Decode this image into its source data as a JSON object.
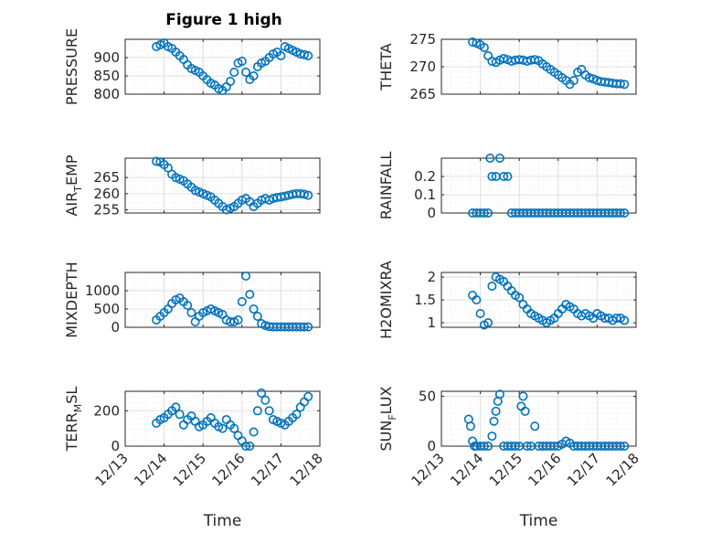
{
  "figure": {
    "title": "Figure 1 high"
  },
  "chart_data": [
    {
      "type": "scatter",
      "ylabel": "PRESSURE",
      "ylim": [
        800,
        950
      ],
      "yticks": [
        800,
        850,
        900
      ],
      "xlim": [
        0,
        5
      ],
      "x": [
        0.8,
        0.9,
        1.0,
        1.1,
        1.2,
        1.3,
        1.4,
        1.5,
        1.6,
        1.7,
        1.8,
        1.9,
        2.0,
        2.1,
        2.2,
        2.3,
        2.4,
        2.5,
        2.6,
        2.7,
        2.8,
        2.9,
        3.0,
        3.1,
        3.2,
        3.3,
        3.4,
        3.5,
        3.6,
        3.7,
        3.8,
        3.9,
        4.0,
        4.1,
        4.2,
        4.3,
        4.4,
        4.5,
        4.6,
        4.7
      ],
      "y": [
        930,
        935,
        940,
        930,
        925,
        915,
        905,
        895,
        880,
        870,
        865,
        860,
        850,
        840,
        830,
        825,
        815,
        810,
        820,
        835,
        860,
        885,
        890,
        860,
        840,
        850,
        875,
        885,
        890,
        900,
        910,
        915,
        905,
        930,
        925,
        920,
        915,
        910,
        908,
        905
      ]
    },
    {
      "type": "scatter",
      "ylabel": "THETA",
      "ylim": [
        265,
        275
      ],
      "yticks": [
        265,
        270,
        275
      ],
      "xlim": [
        0,
        5
      ],
      "x": [
        0.8,
        0.9,
        1.0,
        1.1,
        1.2,
        1.3,
        1.4,
        1.5,
        1.6,
        1.7,
        1.8,
        1.9,
        2.0,
        2.1,
        2.2,
        2.3,
        2.4,
        2.5,
        2.6,
        2.7,
        2.8,
        2.9,
        3.0,
        3.1,
        3.2,
        3.3,
        3.4,
        3.5,
        3.6,
        3.7,
        3.8,
        3.9,
        4.0,
        4.1,
        4.2,
        4.3,
        4.4,
        4.5,
        4.6,
        4.7
      ],
      "y": [
        274.5,
        274.3,
        274.0,
        273.5,
        272.0,
        271.0,
        270.8,
        271.2,
        271.5,
        271.3,
        271.0,
        271.2,
        271.3,
        271.2,
        271.0,
        271.2,
        271.3,
        271.1,
        270.5,
        270.0,
        269.5,
        269.0,
        268.5,
        268.0,
        267.5,
        266.8,
        267.5,
        269.0,
        269.5,
        268.5,
        268.0,
        267.8,
        267.5,
        267.3,
        267.2,
        267.1,
        267.0,
        266.9,
        266.9,
        266.8
      ]
    },
    {
      "type": "scatter",
      "ylabel": "AIR_T_EMP",
      "ylim": [
        254,
        271
      ],
      "yticks": [
        255,
        260,
        265
      ],
      "xlim": [
        0,
        5
      ],
      "x": [
        0.8,
        0.9,
        1.0,
        1.1,
        1.2,
        1.3,
        1.4,
        1.5,
        1.6,
        1.7,
        1.8,
        1.9,
        2.0,
        2.1,
        2.2,
        2.3,
        2.4,
        2.5,
        2.6,
        2.7,
        2.8,
        2.9,
        3.0,
        3.1,
        3.2,
        3.3,
        3.4,
        3.5,
        3.6,
        3.7,
        3.8,
        3.9,
        4.0,
        4.1,
        4.2,
        4.3,
        4.4,
        4.5,
        4.6,
        4.7
      ],
      "y": [
        270,
        269.8,
        269.0,
        268.0,
        266.0,
        265.0,
        264.5,
        264.0,
        263.0,
        262.0,
        261.0,
        260.5,
        260.0,
        259.5,
        259.0,
        258.0,
        257.0,
        256.0,
        255.0,
        255.5,
        256.0,
        257.0,
        258.0,
        258.5,
        257.5,
        256.0,
        257.0,
        258.0,
        258.5,
        258.0,
        258.5,
        258.8,
        259.0,
        259.2,
        259.5,
        259.8,
        260.0,
        260.0,
        259.8,
        259.5
      ]
    },
    {
      "type": "scatter",
      "ylabel": "RAINFALL",
      "ylim": [
        0,
        0.3
      ],
      "yticks": [
        0,
        0.1,
        0.2
      ],
      "xlim": [
        0,
        5
      ],
      "x": [
        0.8,
        0.9,
        1.0,
        1.1,
        1.2,
        1.25,
        1.3,
        1.4,
        1.5,
        1.6,
        1.7,
        1.8,
        1.9,
        2.0,
        2.1,
        2.2,
        2.3,
        2.4,
        2.5,
        2.6,
        2.7,
        2.8,
        2.9,
        3.0,
        3.1,
        3.2,
        3.3,
        3.4,
        3.5,
        3.6,
        3.7,
        3.8,
        3.9,
        4.0,
        4.1,
        4.2,
        4.3,
        4.4,
        4.5,
        4.6,
        4.7
      ],
      "y": [
        0,
        0,
        0,
        0,
        0,
        0.3,
        0.2,
        0.2,
        0.3,
        0.2,
        0.2,
        0,
        0,
        0,
        0,
        0,
        0,
        0,
        0,
        0,
        0,
        0,
        0,
        0,
        0,
        0,
        0,
        0,
        0,
        0,
        0,
        0,
        0,
        0,
        0,
        0,
        0,
        0,
        0,
        0,
        0
      ]
    },
    {
      "type": "scatter",
      "ylabel": "MIXDEPTH",
      "ylim": [
        0,
        1500
      ],
      "yticks": [
        0,
        500,
        1000
      ],
      "xlim": [
        0,
        5
      ],
      "x": [
        0.8,
        0.9,
        1.0,
        1.1,
        1.2,
        1.3,
        1.4,
        1.5,
        1.6,
        1.7,
        1.8,
        1.9,
        2.0,
        2.1,
        2.2,
        2.3,
        2.4,
        2.5,
        2.6,
        2.7,
        2.8,
        2.9,
        3.0,
        3.1,
        3.2,
        3.3,
        3.4,
        3.5,
        3.6,
        3.7,
        3.8,
        3.9,
        4.0,
        4.1,
        4.2,
        4.3,
        4.4,
        4.5,
        4.6,
        4.7
      ],
      "y": [
        200,
        300,
        400,
        500,
        650,
        750,
        800,
        700,
        600,
        400,
        150,
        300,
        400,
        450,
        500,
        450,
        400,
        350,
        200,
        150,
        150,
        200,
        700,
        1400,
        900,
        500,
        300,
        100,
        50,
        20,
        10,
        10,
        10,
        10,
        10,
        10,
        10,
        10,
        10,
        10
      ]
    },
    {
      "type": "scatter",
      "ylabel": "H2OMIXRA",
      "ylim": [
        0.9,
        2.1
      ],
      "yticks": [
        1,
        1.5,
        2
      ],
      "xlim": [
        0,
        5
      ],
      "x": [
        0.8,
        0.9,
        1.0,
        1.1,
        1.2,
        1.3,
        1.4,
        1.5,
        1.6,
        1.7,
        1.8,
        1.9,
        2.0,
        2.1,
        2.2,
        2.3,
        2.4,
        2.5,
        2.6,
        2.7,
        2.8,
        2.9,
        3.0,
        3.1,
        3.2,
        3.3,
        3.4,
        3.5,
        3.6,
        3.7,
        3.8,
        3.9,
        4.0,
        4.1,
        4.2,
        4.3,
        4.4,
        4.5,
        4.6,
        4.7
      ],
      "y": [
        1.6,
        1.5,
        1.2,
        0.95,
        1.0,
        1.8,
        2.0,
        1.95,
        1.9,
        1.8,
        1.7,
        1.6,
        1.55,
        1.4,
        1.3,
        1.2,
        1.15,
        1.1,
        1.05,
        1.0,
        1.05,
        1.1,
        1.2,
        1.3,
        1.4,
        1.35,
        1.3,
        1.2,
        1.15,
        1.2,
        1.15,
        1.1,
        1.2,
        1.15,
        1.1,
        1.1,
        1.05,
        1.1,
        1.1,
        1.05
      ]
    },
    {
      "type": "scatter",
      "ylabel": "TERR_M_SL",
      "ylim": [
        0,
        310
      ],
      "yticks": [
        0,
        200
      ],
      "xlim": [
        0,
        5
      ],
      "x": [
        0.8,
        0.9,
        1.0,
        1.1,
        1.2,
        1.3,
        1.4,
        1.5,
        1.6,
        1.7,
        1.8,
        1.9,
        2.0,
        2.1,
        2.2,
        2.3,
        2.4,
        2.5,
        2.6,
        2.7,
        2.8,
        2.9,
        3.0,
        3.1,
        3.2,
        3.3,
        3.4,
        3.5,
        3.6,
        3.7,
        3.8,
        3.9,
        4.0,
        4.1,
        4.2,
        4.3,
        4.4,
        4.5,
        4.6,
        4.7
      ],
      "y": [
        130,
        150,
        160,
        180,
        200,
        220,
        180,
        120,
        150,
        170,
        140,
        110,
        120,
        140,
        160,
        130,
        110,
        100,
        150,
        120,
        100,
        60,
        30,
        0,
        0,
        80,
        200,
        300,
        260,
        200,
        150,
        140,
        130,
        120,
        140,
        160,
        180,
        220,
        250,
        280
      ]
    },
    {
      "type": "scatter",
      "ylabel": "SUN_F_LUX",
      "ylim": [
        0,
        55
      ],
      "yticks": [
        0,
        50
      ],
      "xlim": [
        0,
        5
      ],
      "x": [
        0.7,
        0.75,
        0.8,
        0.85,
        0.9,
        1.0,
        1.1,
        1.2,
        1.3,
        1.35,
        1.4,
        1.45,
        1.5,
        1.6,
        1.7,
        1.8,
        1.9,
        2.0,
        2.05,
        2.1,
        2.15,
        2.2,
        2.3,
        2.4,
        2.5,
        2.6,
        2.7,
        2.8,
        2.9,
        3.0,
        3.1,
        3.2,
        3.3,
        3.4,
        3.5,
        3.6,
        3.7,
        3.8,
        3.9,
        4.0,
        4.1,
        4.2,
        4.3,
        4.4,
        4.5,
        4.6,
        4.7
      ],
      "y": [
        27,
        20,
        5,
        0,
        0,
        0,
        0,
        0,
        10,
        25,
        35,
        45,
        52,
        0,
        0,
        0,
        0,
        0,
        40,
        50,
        35,
        0,
        0,
        20,
        0,
        0,
        0,
        0,
        0,
        0,
        2,
        5,
        3,
        0,
        0,
        0,
        0,
        0,
        0,
        0,
        0,
        0,
        0,
        0,
        0,
        0,
        0
      ]
    }
  ],
  "xaxis": {
    "xlabel": "Time",
    "ticks": [
      0,
      1,
      2,
      3,
      4,
      5
    ],
    "tick_labels": [
      "12/13",
      "12/14",
      "12/15",
      "12/16",
      "12/17",
      "12/18"
    ]
  },
  "style": {
    "marker_color": "#0072bd",
    "axis_color": "#262626",
    "grid_color": "#dfdfdf"
  }
}
